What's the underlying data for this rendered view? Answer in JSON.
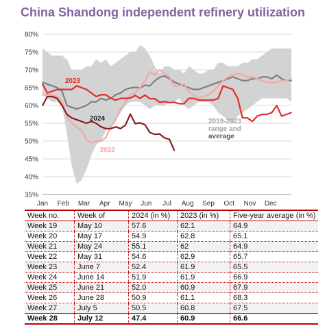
{
  "title": "China Shandong independent refinery utilization",
  "chart_data": {
    "type": "line",
    "ylim": [
      35,
      80
    ],
    "y_ticks": [
      "80%",
      "75%",
      "70%",
      "65%",
      "60%",
      "55%",
      "50%",
      "45%",
      "40%",
      "35%"
    ],
    "y_tick_values": [
      80,
      75,
      70,
      65,
      60,
      55,
      50,
      45,
      40,
      35
    ],
    "x_ticks": [
      "Jan",
      "Feb",
      "Mar",
      "Apr",
      "May",
      "Jun",
      "Jul",
      "Aug",
      "Sep",
      "Oct",
      "Nov",
      "Dec"
    ],
    "x_domain": [
      1,
      52
    ],
    "range_band": {
      "weeks": [
        1,
        2,
        3,
        4,
        5,
        6,
        7,
        8,
        9,
        10,
        11,
        12,
        13,
        14,
        15,
        16,
        17,
        18,
        19,
        20,
        21,
        22,
        23,
        24,
        25,
        26,
        27,
        28,
        29,
        30,
        31,
        32,
        33,
        34,
        35,
        36,
        37,
        38,
        39,
        40,
        41,
        42,
        43,
        44,
        45,
        46,
        47,
        48,
        49,
        50,
        51,
        52
      ],
      "high": [
        76,
        75,
        74,
        74,
        74,
        73,
        70,
        70,
        70,
        71,
        71,
        73,
        72,
        73,
        71,
        72,
        73,
        74,
        75,
        75,
        77,
        76,
        74,
        71,
        69,
        71,
        71,
        70,
        70,
        69,
        71,
        70,
        69,
        69,
        70,
        70,
        72,
        72,
        71,
        71,
        71,
        72,
        72,
        73,
        73,
        74,
        75,
        76,
        76,
        76,
        76,
        76
      ],
      "low": [
        63,
        62,
        61,
        61,
        60,
        52,
        43,
        38,
        39,
        42,
        46,
        49,
        50,
        53,
        54,
        56,
        58,
        60,
        61,
        61,
        61,
        60,
        59,
        60,
        60,
        60,
        61,
        61,
        62,
        60,
        59,
        60,
        61,
        61,
        61,
        60,
        58,
        57,
        56,
        55,
        57,
        58,
        59,
        60,
        61,
        62,
        62,
        62,
        62,
        62,
        62,
        61
      ]
    },
    "series": [
      {
        "name": "2019-2023 range and average",
        "color": "#7f7f7f",
        "x": [
          1,
          2,
          3,
          4,
          5,
          6,
          7,
          8,
          9,
          10,
          11,
          12,
          13,
          14,
          15,
          16,
          17,
          18,
          19,
          20,
          21,
          22,
          23,
          24,
          25,
          26,
          27,
          28,
          29,
          30,
          31,
          32,
          33,
          34,
          35,
          36,
          37,
          38,
          39,
          40,
          41,
          42,
          43,
          44,
          45,
          46,
          47,
          48,
          49,
          50,
          51,
          52
        ],
        "y": [
          66.5,
          66,
          65.5,
          65,
          64,
          60,
          59.5,
          59,
          59.5,
          60,
          61,
          61,
          62,
          61.5,
          62,
          63,
          63.5,
          64.5,
          64.9,
          65.1,
          64.9,
          65.7,
          65.5,
          66.9,
          67.9,
          68.3,
          67.5,
          66.6,
          66,
          65.5,
          65,
          64.5,
          64.5,
          65,
          65.5,
          66,
          66.5,
          67,
          67.5,
          68,
          67.5,
          67,
          67,
          67.5,
          67.5,
          68,
          68,
          67.5,
          68.5,
          67.5,
          67,
          67
        ]
      },
      {
        "name": "2023",
        "color": "#e32b2b",
        "x": [
          1,
          2,
          3,
          4,
          5,
          6,
          7,
          8,
          9,
          10,
          11,
          12,
          13,
          14,
          15,
          16,
          17,
          18,
          19,
          20,
          21,
          22,
          23,
          24,
          25,
          26,
          27,
          28,
          29,
          30,
          31,
          32,
          33,
          34,
          35,
          36,
          37,
          38,
          39,
          40,
          41,
          42,
          43,
          44,
          45,
          46,
          47,
          48,
          49,
          50,
          51,
          52
        ],
        "y": [
          66,
          63.5,
          64,
          64.5,
          64.5,
          64.5,
          64.5,
          65.5,
          65,
          64.5,
          63.5,
          62.5,
          63,
          63,
          62,
          61.5,
          62,
          62,
          62.1,
          62.8,
          62,
          62.9,
          61.9,
          61.9,
          60.9,
          61.1,
          60.8,
          60.9,
          60.5,
          60.5,
          62,
          62,
          61.5,
          61.5,
          61.5,
          61.5,
          62,
          65.5,
          65,
          64.5,
          62,
          56.5,
          56.5,
          55.5,
          57,
          57.5,
          57.5,
          58,
          60,
          57,
          57.5,
          58
        ]
      },
      {
        "name": "2022",
        "color": "#f4a6a6",
        "x": [
          1,
          2,
          3,
          4,
          5,
          6,
          7,
          8,
          9,
          10,
          11,
          12,
          13,
          14,
          15,
          16,
          17,
          18,
          19,
          20,
          21,
          22,
          23,
          24,
          25,
          26,
          27,
          28,
          29,
          30,
          31,
          32,
          33,
          34,
          35,
          36,
          37,
          38,
          39,
          40,
          41,
          42,
          43,
          44,
          45,
          46,
          47,
          48,
          49,
          50,
          51,
          52
        ],
        "y": [
          63,
          63,
          63,
          62.5,
          61,
          57,
          55,
          54,
          53,
          50.5,
          49.5,
          50,
          50,
          51,
          54,
          56,
          59,
          61,
          63,
          63.5,
          65,
          67,
          69.5,
          68.5,
          70,
          69,
          68,
          65.5,
          65.5,
          66,
          64,
          63,
          62,
          62.5,
          63,
          64,
          65.5,
          67,
          68,
          68.5,
          69,
          68.5,
          68,
          68,
          67.5,
          67,
          66.5,
          66.5,
          66.5,
          67,
          67,
          67.5
        ]
      },
      {
        "name": "2024",
        "color": "#8b1a1a",
        "x": [
          1,
          2,
          3,
          4,
          5,
          6,
          7,
          8,
          9,
          10,
          11,
          12,
          13,
          14,
          15,
          16,
          17,
          18,
          19,
          20,
          21,
          22,
          23,
          24,
          25,
          26,
          27,
          28
        ],
        "y": [
          60,
          62.5,
          62.5,
          62,
          60,
          57.5,
          56.5,
          56,
          55.5,
          55,
          55.5,
          55,
          54,
          53.5,
          53.5,
          54,
          53.5,
          54.5,
          57.6,
          54.9,
          55.1,
          54.6,
          52.4,
          51.9,
          52.0,
          50.9,
          50.5,
          47.4
        ]
      }
    ],
    "annotations": [
      "2023",
      "2024",
      "2022",
      "2019-2023",
      "range and",
      "average"
    ]
  },
  "table": {
    "headers": [
      "Week no.",
      "Week of",
      "2024 (in %)",
      "2023 (in %)",
      "Five-year average (in %)"
    ],
    "rows": [
      [
        "Week 19",
        "May 10",
        "57.6",
        "62.1",
        "64.9"
      ],
      [
        "Week 20",
        "May 17",
        "54.9",
        "62.8",
        "65.1"
      ],
      [
        "Week 21",
        "May 24",
        "55.1",
        "62",
        "64.9"
      ],
      [
        "Week 22",
        "May 31",
        "54.6",
        "62.9",
        "65.7"
      ],
      [
        "Week 23",
        "June 7",
        "52.4",
        "61.9",
        "65.5"
      ],
      [
        "Week 24",
        "June 14",
        "51.9",
        "61.9",
        "66.9"
      ],
      [
        "Week 25",
        "June 21",
        "52.0",
        "60.9",
        "67.9"
      ],
      [
        "Week 26",
        "June 28",
        "50.9",
        "61.1",
        "68.3"
      ],
      [
        "Week 27",
        "July 5",
        "50.5",
        "60.8",
        "67.5"
      ]
    ],
    "last_row": [
      "Week 28",
      "July 12",
      "47.4",
      "60.9",
      "66.6"
    ]
  }
}
